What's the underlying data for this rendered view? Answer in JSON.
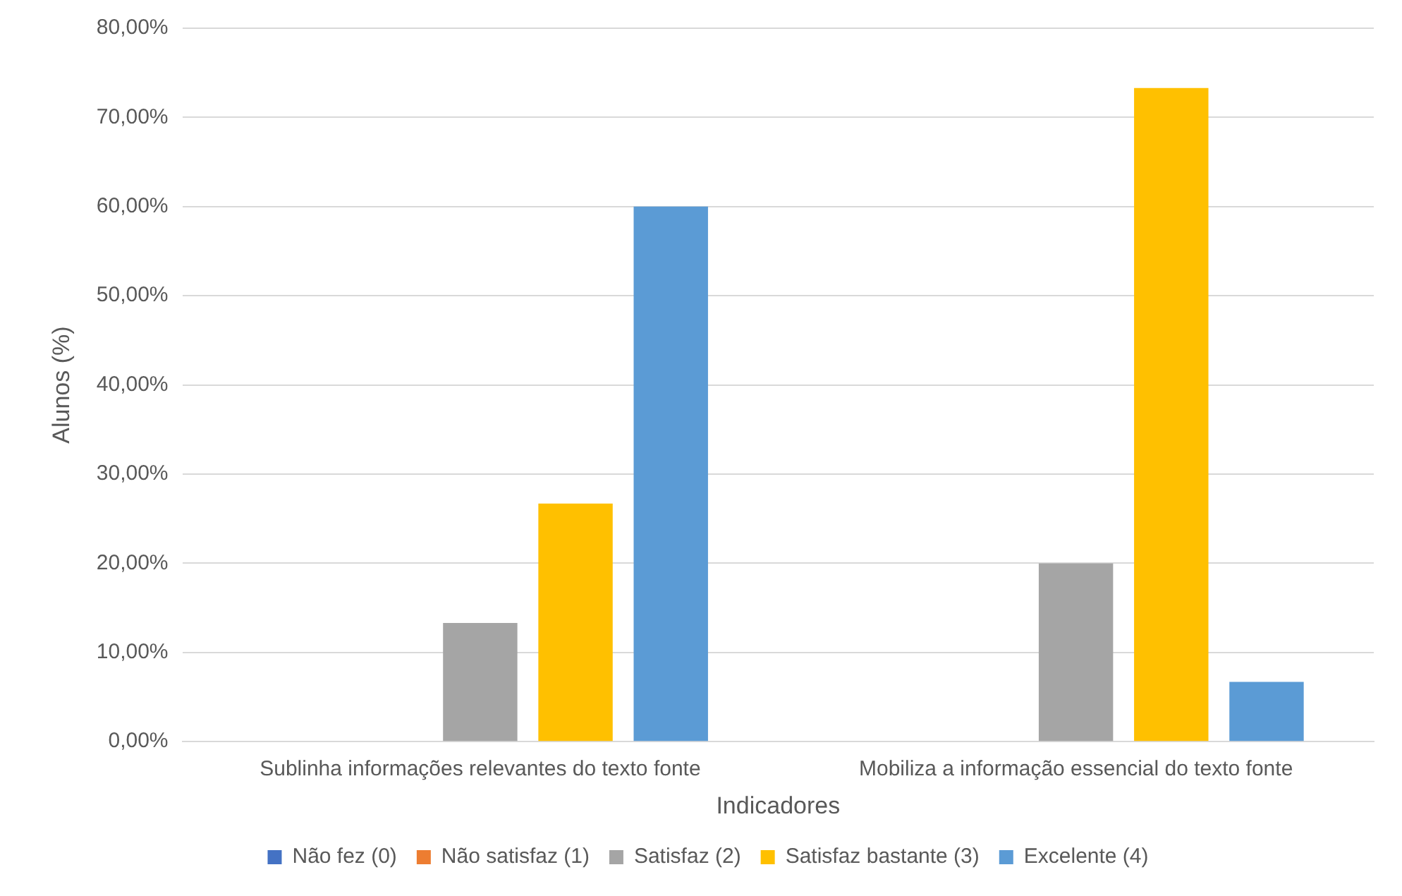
{
  "chart_data": {
    "type": "bar",
    "xlabel": "Indicadores",
    "ylabel": "Alunos (%)",
    "categories": [
      "Sublinha informações relevantes do texto fonte",
      "Mobiliza a informação essencial do texto fonte"
    ],
    "series": [
      {
        "name": "Não fez (0)",
        "color": "#4472c4",
        "values": [
          0,
          0
        ]
      },
      {
        "name": "Não satisfaz (1)",
        "color": "#ed7d31",
        "values": [
          0,
          0
        ]
      },
      {
        "name": "Satisfaz (2)",
        "color": "#a5a5a5",
        "values": [
          13.3,
          20
        ]
      },
      {
        "name": "Satisfaz bastante (3)",
        "color": "#ffc000",
        "values": [
          26.7,
          73.3
        ]
      },
      {
        "name": "Excelente (4)",
        "color": "#5b9bd5",
        "values": [
          60,
          6.7
        ]
      }
    ],
    "ylim": [
      0,
      80
    ],
    "yticks": [
      {
        "value": 0,
        "label": "0,00%"
      },
      {
        "value": 10,
        "label": "10,00%"
      },
      {
        "value": 20,
        "label": "20,00%"
      },
      {
        "value": 30,
        "label": "30,00%"
      },
      {
        "value": 40,
        "label": "40,00%"
      },
      {
        "value": 50,
        "label": "50,00%"
      },
      {
        "value": 60,
        "label": "60,00%"
      },
      {
        "value": 70,
        "label": "70,00%"
      },
      {
        "value": 80,
        "label": "80,00%"
      }
    ],
    "grid": "y",
    "legend": "bottom"
  }
}
